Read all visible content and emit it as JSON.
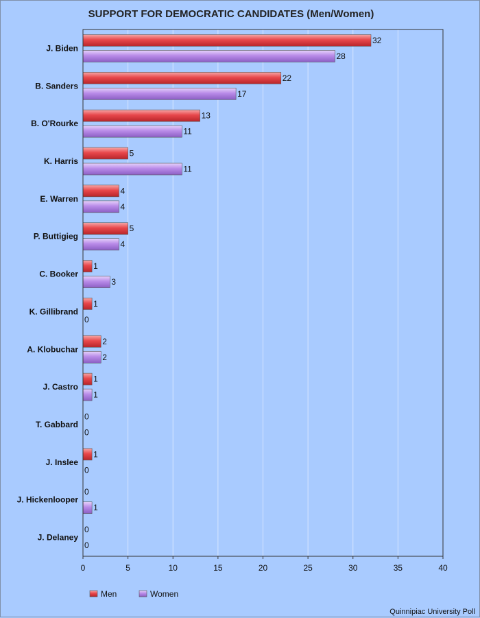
{
  "chart_data": {
    "type": "bar",
    "orientation": "horizontal",
    "title": "SUPPORT FOR DEMOCRATIC CANDIDATES (Men/Women)",
    "categories": [
      "J. Biden",
      "B. Sanders",
      "B. O'Rourke",
      "K. Harris",
      "E. Warren",
      "P. Buttigieg",
      "C. Booker",
      "K. Gillibrand",
      "A. Klobuchar",
      "J. Castro",
      "T. Gabbard",
      "J. Inslee",
      "J. Hickenlooper",
      "J. Delaney"
    ],
    "series": [
      {
        "name": "Men",
        "color": "#e8474b",
        "values": [
          32,
          22,
          13,
          5,
          4,
          5,
          1,
          1,
          2,
          1,
          0,
          1,
          0,
          0
        ]
      },
      {
        "name": "Women",
        "color": "#b98be8",
        "values": [
          28,
          17,
          11,
          11,
          4,
          4,
          3,
          0,
          2,
          1,
          0,
          0,
          1,
          0
        ]
      }
    ],
    "xlim": [
      0,
      40
    ],
    "xticks": [
      0,
      5,
      10,
      15,
      20,
      25,
      30,
      35,
      40
    ],
    "xlabel": "",
    "ylabel": "",
    "grid": true,
    "legend_position": "bottom-left",
    "plot_background": "#a9cbff",
    "gridline_color": "#d7e6ff"
  },
  "source": "Quinnipiac University Poll"
}
